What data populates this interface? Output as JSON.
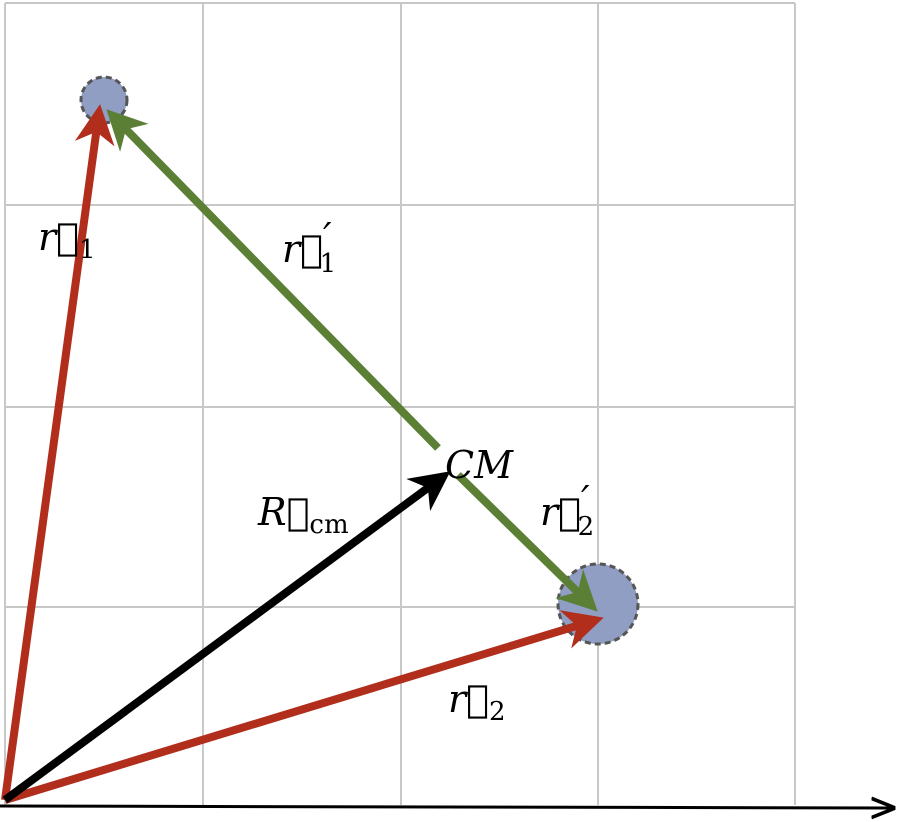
{
  "labels": {
    "r1": {
      "base": "r⃗",
      "sub": "1"
    },
    "r1_prime": {
      "base": "r⃗",
      "sup": "′",
      "sub": "1"
    },
    "r2": {
      "base": "r⃗",
      "sub": "2"
    },
    "r2_prime": {
      "base": "r⃗",
      "sup": "′",
      "sub": "2"
    },
    "r_cm": {
      "base": "R⃗",
      "sub": "cm"
    },
    "cm": "CM"
  }
}
